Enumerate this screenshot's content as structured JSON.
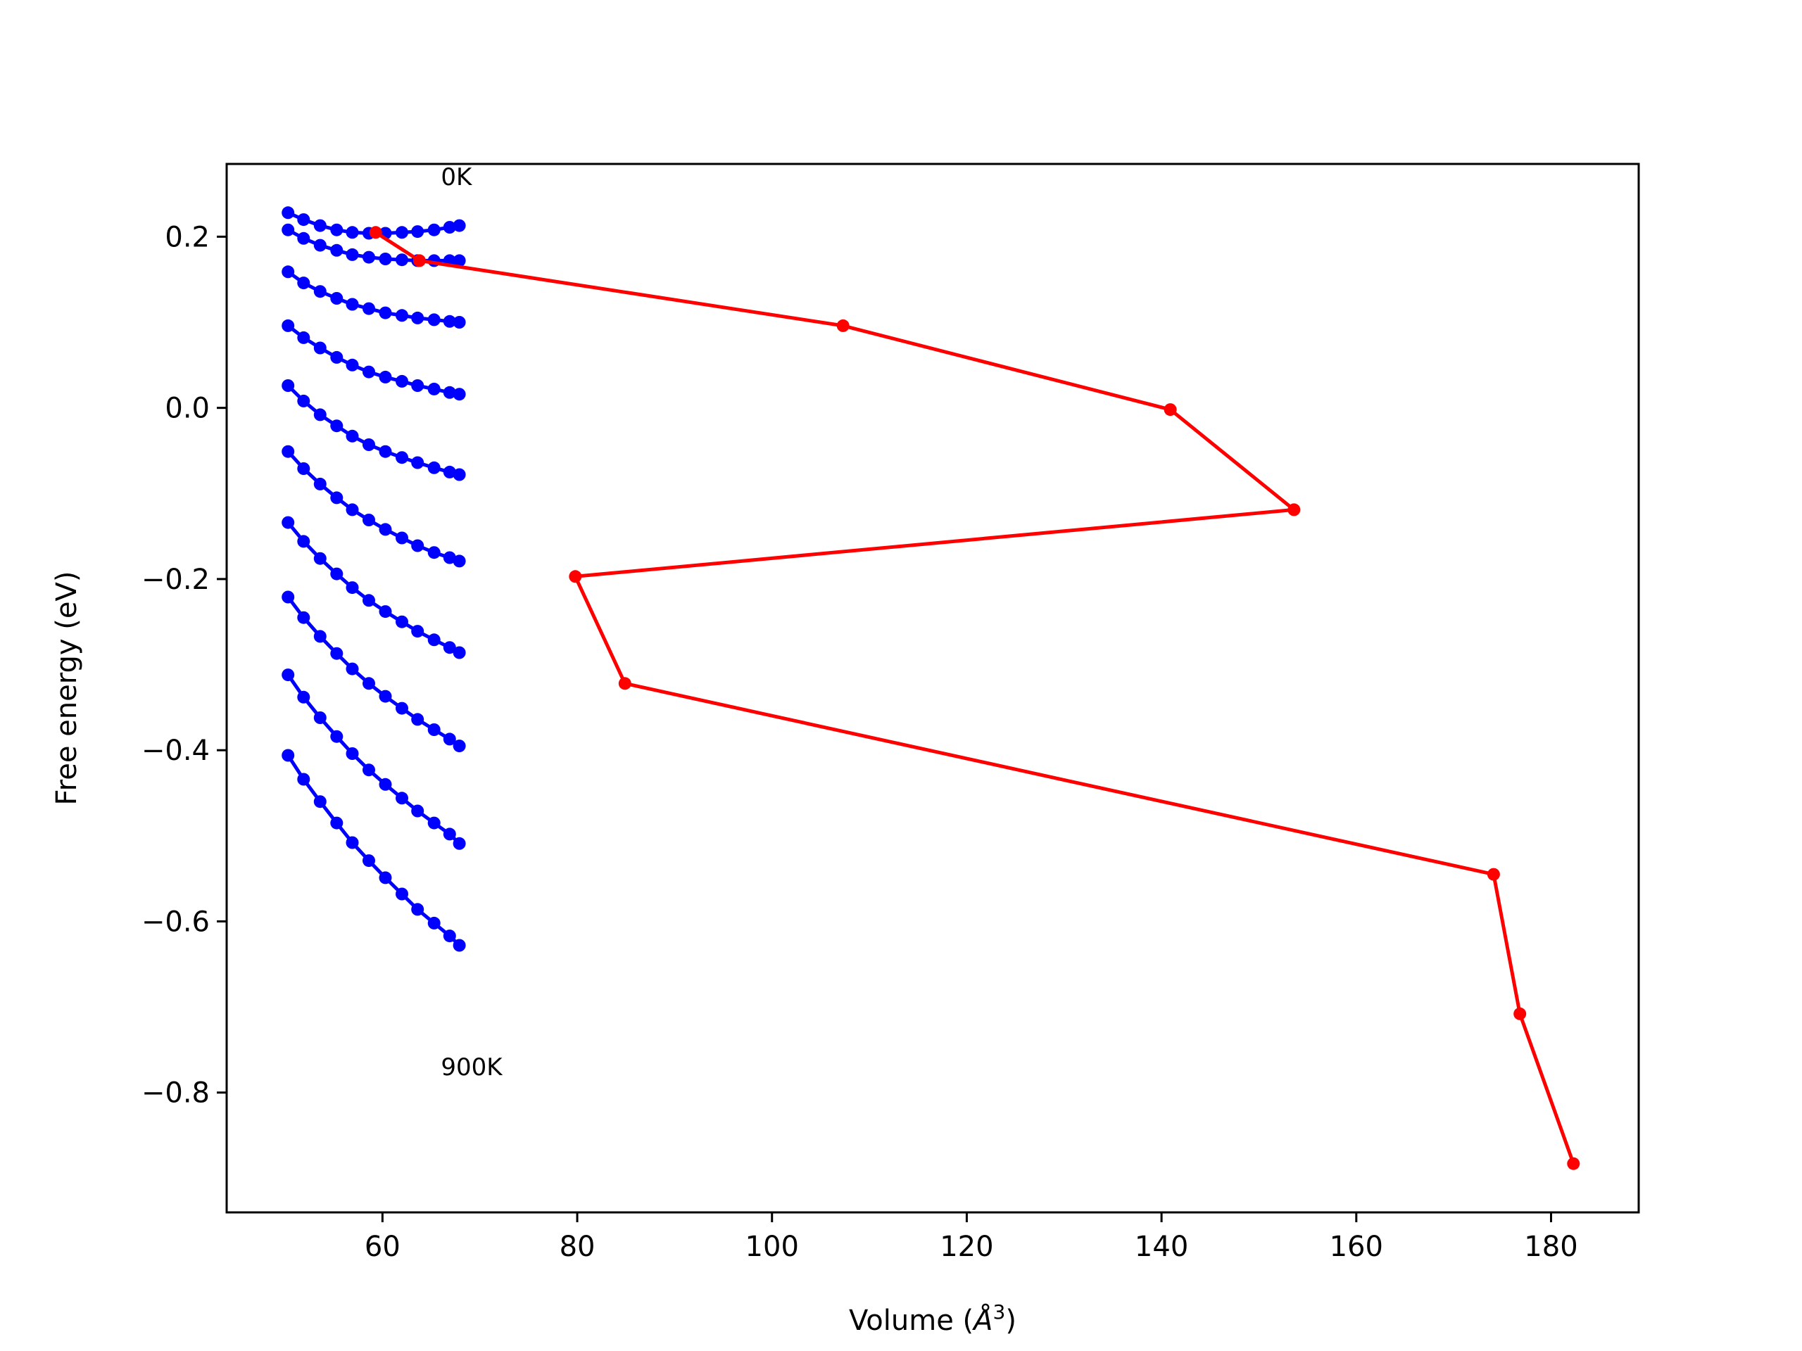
{
  "chart_data": {
    "type": "line",
    "title": "",
    "xlabel": "Volume (",
    "xlabel_symbol": "Å",
    "xlabel_exponent": "3",
    "xlabel_suffix": ")",
    "ylabel": "Free energy (eV)",
    "xlim": [
      44,
      189
    ],
    "ylim": [
      -0.94,
      0.285
    ],
    "xticks": [
      60,
      80,
      100,
      120,
      140,
      160,
      180
    ],
    "xtick_labels": [
      "60",
      "80",
      "100",
      "120",
      "140",
      "160",
      "180"
    ],
    "yticks": [
      0.2,
      0.0,
      -0.2,
      -0.4,
      -0.6,
      -0.8
    ],
    "ytick_labels": [
      "0.2",
      "0.0",
      "−0.2",
      "−0.4",
      "−0.6",
      "−0.8"
    ],
    "grid": false,
    "legend": "none",
    "annotations": [
      {
        "text": "0K",
        "x": 66.0,
        "y": 0.27
      },
      {
        "text": "900K",
        "x": 66.0,
        "y": -0.77
      }
    ],
    "curve_x": [
      50.3,
      51.9,
      53.6,
      55.3,
      56.9,
      58.6,
      60.3,
      62.0,
      63.6,
      65.3,
      66.9,
      67.9
    ],
    "series": [
      {
        "color": "#0000ff",
        "x": [
          50.3,
          51.9,
          53.6,
          55.3,
          56.9,
          58.6,
          60.3,
          62.0,
          63.6,
          65.3,
          66.9,
          67.9
        ],
        "values": [
          0.228,
          0.22,
          0.213,
          0.208,
          0.205,
          0.204,
          0.204,
          0.205,
          0.206,
          0.208,
          0.211,
          0.213
        ]
      },
      {
        "color": "#0000ff",
        "x": [
          50.3,
          51.9,
          53.6,
          55.3,
          56.9,
          58.6,
          60.3,
          62.0,
          63.6,
          65.3,
          66.9,
          67.9
        ],
        "values": [
          0.208,
          0.198,
          0.19,
          0.184,
          0.179,
          0.176,
          0.174,
          0.173,
          0.172,
          0.172,
          0.172,
          0.172
        ]
      },
      {
        "color": "#0000ff",
        "x": [
          50.3,
          51.9,
          53.6,
          55.3,
          56.9,
          58.6,
          60.3,
          62.0,
          63.6,
          65.3,
          66.9,
          67.9
        ],
        "values": [
          0.159,
          0.146,
          0.136,
          0.128,
          0.121,
          0.116,
          0.111,
          0.108,
          0.105,
          0.103,
          0.101,
          0.1
        ]
      },
      {
        "color": "#0000ff",
        "x": [
          50.3,
          51.9,
          53.6,
          55.3,
          56.9,
          58.6,
          60.3,
          62.0,
          63.6,
          65.3,
          66.9,
          67.9
        ],
        "values": [
          0.096,
          0.082,
          0.07,
          0.059,
          0.05,
          0.042,
          0.036,
          0.031,
          0.026,
          0.022,
          0.018,
          0.016
        ]
      },
      {
        "color": "#0000ff",
        "x": [
          50.3,
          51.9,
          53.6,
          55.3,
          56.9,
          58.6,
          60.3,
          62.0,
          63.6,
          65.3,
          66.9,
          67.9
        ],
        "values": [
          0.026,
          0.008,
          -0.008,
          -0.021,
          -0.033,
          -0.043,
          -0.051,
          -0.058,
          -0.064,
          -0.07,
          -0.075,
          -0.078
        ]
      },
      {
        "color": "#0000ff",
        "x": [
          50.3,
          51.9,
          53.6,
          55.3,
          56.9,
          58.6,
          60.3,
          62.0,
          63.6,
          65.3,
          66.9,
          67.9
        ],
        "values": [
          -0.051,
          -0.071,
          -0.089,
          -0.105,
          -0.119,
          -0.131,
          -0.142,
          -0.152,
          -0.161,
          -0.169,
          -0.175,
          -0.179
        ]
      },
      {
        "color": "#0000ff",
        "x": [
          50.3,
          51.9,
          53.6,
          55.3,
          56.9,
          58.6,
          60.3,
          62.0,
          63.6,
          65.3,
          66.9,
          67.9
        ],
        "values": [
          -0.134,
          -0.156,
          -0.176,
          -0.194,
          -0.21,
          -0.225,
          -0.238,
          -0.25,
          -0.261,
          -0.271,
          -0.28,
          -0.286
        ]
      },
      {
        "color": "#0000ff",
        "x": [
          50.3,
          51.9,
          53.6,
          55.3,
          56.9,
          58.6,
          60.3,
          62.0,
          63.6,
          65.3,
          66.9,
          67.9
        ],
        "values": [
          -0.221,
          -0.245,
          -0.267,
          -0.287,
          -0.305,
          -0.322,
          -0.337,
          -0.351,
          -0.364,
          -0.376,
          -0.387,
          -0.395
        ]
      },
      {
        "color": "#0000ff",
        "x": [
          50.3,
          51.9,
          53.6,
          55.3,
          56.9,
          58.6,
          60.3,
          62.0,
          63.6,
          65.3,
          66.9,
          67.9
        ],
        "values": [
          -0.312,
          -0.338,
          -0.362,
          -0.384,
          -0.404,
          -0.423,
          -0.44,
          -0.456,
          -0.471,
          -0.485,
          -0.498,
          -0.509
        ]
      },
      {
        "color": "#0000ff",
        "x": [
          50.3,
          51.9,
          53.6,
          55.3,
          56.9,
          58.6,
          60.3,
          62.0,
          63.6,
          65.3,
          66.9,
          67.9
        ],
        "values": [
          -0.406,
          -0.434,
          -0.46,
          -0.485,
          -0.508,
          -0.529,
          -0.549,
          -0.568,
          -0.586,
          -0.602,
          -0.617,
          -0.628
        ]
      },
      {
        "color": "#ff0000",
        "x": [
          59.3,
          63.8,
          107.3,
          140.9,
          153.6,
          79.8,
          84.9,
          174.1,
          176.8,
          182.3
        ],
        "values": [
          0.205,
          0.172,
          0.096,
          -0.002,
          -0.119,
          -0.197,
          -0.322,
          -0.545,
          -0.708,
          -0.883
        ]
      }
    ]
  }
}
